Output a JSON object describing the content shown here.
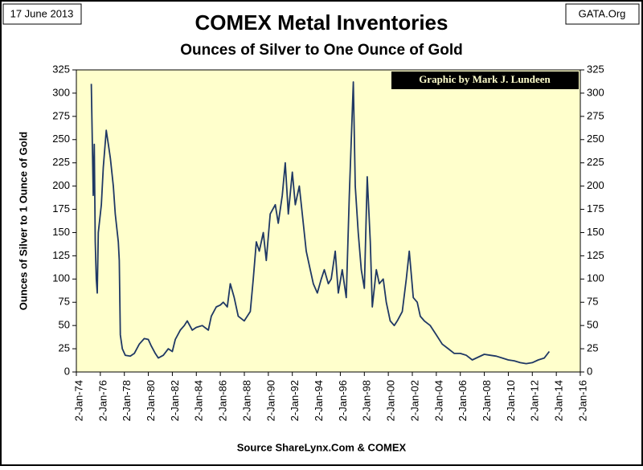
{
  "chart_data": {
    "type": "line",
    "title": "COMEX Metal Inventories",
    "subtitle": "Ounces of Silver to One Ounce of Gold",
    "date_label": "17 June 2013",
    "site_label": "GATA.Org",
    "credit": "Graphic by Mark J. Lundeen",
    "source": "Source ShareLynx.Com & COMEX",
    "y_label": "Ounces of Silver to 1 Ounce of Gold",
    "color": "#1f3864",
    "background": "#ffffcc",
    "ylim": [
      0,
      325
    ],
    "yticks": [
      0,
      25,
      50,
      75,
      100,
      125,
      150,
      175,
      200,
      225,
      250,
      275,
      300,
      325
    ],
    "xlim": [
      "1974-01-02",
      "2016-01-02"
    ],
    "xticks": [
      {
        "value": "1974-01-02",
        "label": "2-Jan-74"
      },
      {
        "value": "1976-01-02",
        "label": "2-Jan-76"
      },
      {
        "value": "1978-01-02",
        "label": "2-Jan-78"
      },
      {
        "value": "1980-01-02",
        "label": "2-Jan-80"
      },
      {
        "value": "1982-01-02",
        "label": "2-Jan-82"
      },
      {
        "value": "1984-01-02",
        "label": "2-Jan-84"
      },
      {
        "value": "1986-01-02",
        "label": "2-Jan-86"
      },
      {
        "value": "1988-01-02",
        "label": "2-Jan-88"
      },
      {
        "value": "1990-01-02",
        "label": "2-Jan-90"
      },
      {
        "value": "1992-01-02",
        "label": "2-Jan-92"
      },
      {
        "value": "1994-01-02",
        "label": "2-Jan-94"
      },
      {
        "value": "1996-01-02",
        "label": "2-Jan-96"
      },
      {
        "value": "1998-01-02",
        "label": "2-Jan-98"
      },
      {
        "value": "2000-01-02",
        "label": "2-Jan-00"
      },
      {
        "value": "2002-01-02",
        "label": "2-Jan-02"
      },
      {
        "value": "2004-01-02",
        "label": "2-Jan-04"
      },
      {
        "value": "2006-01-02",
        "label": "2-Jan-06"
      },
      {
        "value": "2008-01-02",
        "label": "2-Jan-08"
      },
      {
        "value": "2010-01-02",
        "label": "2-Jan-10"
      },
      {
        "value": "2012-01-02",
        "label": "2-Jan-12"
      },
      {
        "value": "2014-01-02",
        "label": "2-Jan-14"
      },
      {
        "value": "2016-01-02",
        "label": "2-Jan-16"
      }
    ],
    "x": [
      "1975-04",
      "1975-06",
      "1975-07",
      "1975-08",
      "1975-09",
      "1975-10",
      "1975-11",
      "1976-02",
      "1976-04",
      "1976-07",
      "1976-09",
      "1976-11",
      "1977-02",
      "1977-04",
      "1977-07",
      "1977-08",
      "1977-09",
      "1977-11",
      "1978-02",
      "1978-07",
      "1978-11",
      "1979-04",
      "1979-09",
      "1980-01",
      "1980-04",
      "1980-08",
      "1980-11",
      "1981-04",
      "1981-09",
      "1982-01",
      "1982-04",
      "1982-09",
      "1983-01",
      "1983-04",
      "1983-09",
      "1984-01",
      "1984-07",
      "1985-01",
      "1985-04",
      "1985-09",
      "1986-01",
      "1986-04",
      "1986-08",
      "1986-11",
      "1987-03",
      "1987-07",
      "1988-01",
      "1988-07",
      "1988-10",
      "1989-01",
      "1989-04",
      "1989-08",
      "1989-11",
      "1990-03",
      "1990-08",
      "1990-11",
      "1991-03",
      "1991-06",
      "1991-09",
      "1992-01",
      "1992-04",
      "1992-08",
      "1992-11",
      "1993-03",
      "1993-07",
      "1993-10",
      "1994-02",
      "1994-06",
      "1994-09",
      "1995-01",
      "1995-04",
      "1995-08",
      "1995-11",
      "1996-03",
      "1996-07",
      "1996-10",
      "1997-02",
      "1997-04",
      "1997-07",
      "1997-10",
      "1998-01",
      "1998-04",
      "1998-07",
      "1998-09",
      "1999-01",
      "1999-04",
      "1999-08",
      "1999-11",
      "2000-03",
      "2000-07",
      "2000-10",
      "2001-03",
      "2001-07",
      "2001-10",
      "2002-02",
      "2002-06",
      "2002-09",
      "2003-01",
      "2003-07",
      "2004-01",
      "2004-07",
      "2005-01",
      "2005-07",
      "2006-01",
      "2006-07",
      "2007-01",
      "2007-07",
      "2008-01",
      "2008-07",
      "2009-01",
      "2009-07",
      "2010-01",
      "2010-07",
      "2011-01",
      "2011-07",
      "2012-01",
      "2012-07",
      "2013-01",
      "2013-06"
    ],
    "values": [
      310,
      190,
      245,
      140,
      100,
      85,
      150,
      180,
      220,
      260,
      245,
      230,
      200,
      170,
      140,
      120,
      40,
      25,
      18,
      17,
      20,
      30,
      36,
      35,
      28,
      20,
      15,
      18,
      25,
      22,
      35,
      45,
      50,
      55,
      45,
      48,
      50,
      45,
      60,
      70,
      72,
      75,
      70,
      95,
      80,
      60,
      55,
      65,
      100,
      140,
      130,
      150,
      120,
      170,
      180,
      160,
      190,
      225,
      170,
      215,
      180,
      200,
      170,
      130,
      110,
      95,
      85,
      100,
      110,
      95,
      100,
      130,
      85,
      110,
      80,
      190,
      312,
      200,
      150,
      110,
      90,
      210,
      140,
      70,
      110,
      95,
      100,
      75,
      55,
      50,
      55,
      65,
      100,
      130,
      80,
      75,
      60,
      55,
      50,
      40,
      30,
      25,
      20,
      20,
      18,
      13,
      16,
      19,
      18,
      17,
      15,
      13,
      12,
      10,
      9,
      10,
      13,
      15,
      22
    ]
  }
}
